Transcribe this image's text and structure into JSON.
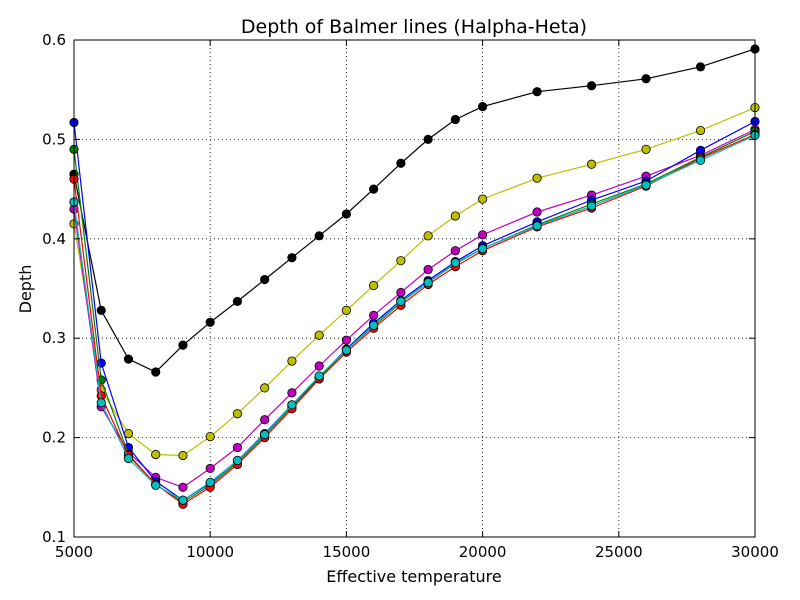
{
  "chart_data": {
    "type": "line",
    "title": "Depth of Balmer lines (Halpha-Heta)",
    "xlabel": "Effective temperature",
    "ylabel": "Depth",
    "xlim": [
      5000,
      30000
    ],
    "ylim": [
      0.1,
      0.6
    ],
    "grid": true,
    "marker": "circle",
    "x": [
      5000,
      6000,
      7000,
      8000,
      9000,
      10000,
      11000,
      12000,
      13000,
      14000,
      15000,
      16000,
      17000,
      18000,
      19000,
      20000,
      22000,
      24000,
      26000,
      28000,
      30000
    ],
    "x_ticks": [
      5000,
      10000,
      15000,
      20000,
      25000,
      30000
    ],
    "y_ticks": [
      0.1,
      0.2,
      0.3,
      0.4,
      0.5,
      0.6
    ],
    "series": [
      {
        "color": "#000000",
        "values": [
          0.465,
          0.328,
          0.279,
          0.266,
          0.293,
          0.316,
          0.337,
          0.359,
          0.381,
          0.403,
          0.425,
          0.45,
          0.476,
          0.5,
          0.52,
          0.533,
          0.548,
          0.554,
          0.561,
          0.573,
          0.591
        ]
      },
      {
        "color": "#bfbf00",
        "values": [
          0.415,
          0.248,
          0.204,
          0.183,
          0.182,
          0.201,
          0.224,
          0.25,
          0.277,
          0.303,
          0.328,
          0.353,
          0.378,
          0.403,
          0.423,
          0.44,
          0.461,
          0.475,
          0.49,
          0.509,
          0.532
        ]
      },
      {
        "color": "#bf00bf",
        "values": [
          0.43,
          0.231,
          0.185,
          0.16,
          0.15,
          0.169,
          0.19,
          0.218,
          0.245,
          0.272,
          0.298,
          0.323,
          0.346,
          0.369,
          0.388,
          0.404,
          0.427,
          0.444,
          0.463,
          0.484,
          0.51
        ]
      },
      {
        "color": "#0000ff",
        "values": [
          0.517,
          0.275,
          0.19,
          0.156,
          0.137,
          0.154,
          0.177,
          0.204,
          0.233,
          0.261,
          0.289,
          0.315,
          0.338,
          0.358,
          0.377,
          0.393,
          0.417,
          0.439,
          0.458,
          0.489,
          0.518
        ]
      },
      {
        "color": "#008000",
        "values": [
          0.49,
          0.258,
          0.183,
          0.153,
          0.135,
          0.152,
          0.175,
          0.202,
          0.231,
          0.26,
          0.288,
          0.312,
          0.336,
          0.356,
          0.375,
          0.39,
          0.414,
          0.435,
          0.455,
          0.482,
          0.508
        ]
      },
      {
        "color": "#ff0000",
        "values": [
          0.46,
          0.242,
          0.182,
          0.153,
          0.133,
          0.15,
          0.173,
          0.2,
          0.229,
          0.259,
          0.286,
          0.31,
          0.333,
          0.354,
          0.372,
          0.388,
          0.412,
          0.431,
          0.453,
          0.481,
          0.505
        ]
      },
      {
        "color": "#00bfbf",
        "values": [
          0.437,
          0.235,
          0.179,
          0.152,
          0.137,
          0.155,
          0.177,
          0.203,
          0.233,
          0.262,
          0.288,
          0.313,
          0.337,
          0.356,
          0.376,
          0.39,
          0.413,
          0.433,
          0.454,
          0.479,
          0.504
        ]
      }
    ]
  }
}
